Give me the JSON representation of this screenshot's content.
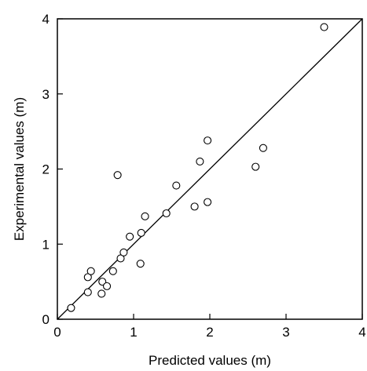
{
  "chart_data": {
    "type": "scatter",
    "title": "",
    "xlabel": "Predicted values (m)",
    "ylabel": "Experimental values (m)",
    "xlim": [
      0,
      4
    ],
    "ylim": [
      0,
      4
    ],
    "xticks": [
      "0",
      "1",
      "2",
      "3",
      "4"
    ],
    "yticks": [
      "0",
      "1",
      "2",
      "3",
      "4"
    ],
    "grid": false,
    "reference_line": {
      "type": "y=x",
      "from": [
        0,
        0
      ],
      "to": [
        4,
        4
      ]
    },
    "marker": "open-circle",
    "points": [
      {
        "x": 0.18,
        "y": 0.15
      },
      {
        "x": 0.4,
        "y": 0.36
      },
      {
        "x": 0.4,
        "y": 0.56
      },
      {
        "x": 0.44,
        "y": 0.64
      },
      {
        "x": 0.58,
        "y": 0.34
      },
      {
        "x": 0.59,
        "y": 0.5
      },
      {
        "x": 0.65,
        "y": 0.44
      },
      {
        "x": 0.73,
        "y": 0.64
      },
      {
        "x": 0.83,
        "y": 0.81
      },
      {
        "x": 0.87,
        "y": 0.89
      },
      {
        "x": 0.95,
        "y": 1.1
      },
      {
        "x": 1.09,
        "y": 0.74
      },
      {
        "x": 1.1,
        "y": 1.15
      },
      {
        "x": 1.15,
        "y": 1.37
      },
      {
        "x": 0.79,
        "y": 1.92
      },
      {
        "x": 1.43,
        "y": 1.41
      },
      {
        "x": 1.56,
        "y": 1.78
      },
      {
        "x": 1.8,
        "y": 1.5
      },
      {
        "x": 1.87,
        "y": 2.1
      },
      {
        "x": 1.97,
        "y": 2.38
      },
      {
        "x": 1.97,
        "y": 1.56
      },
      {
        "x": 2.6,
        "y": 2.03
      },
      {
        "x": 2.7,
        "y": 2.28
      },
      {
        "x": 3.5,
        "y": 3.89
      }
    ]
  }
}
